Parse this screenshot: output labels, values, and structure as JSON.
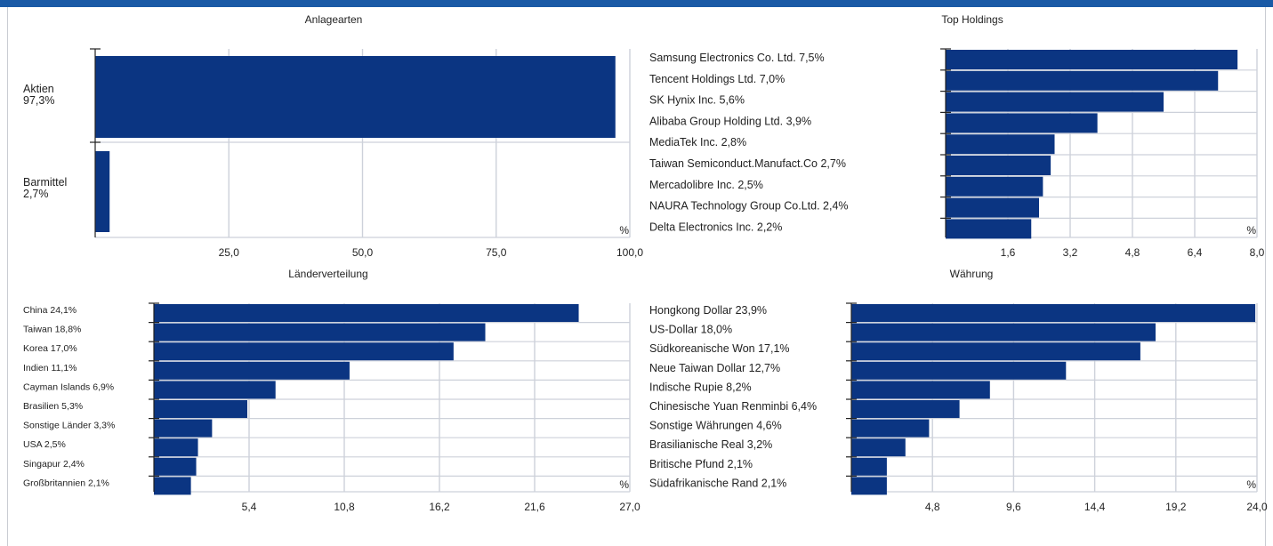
{
  "colors": {
    "bar": "#0b3582",
    "grid": "#cdd1da",
    "axis": "#222222",
    "topbar": "#1a5aa6"
  },
  "chart_data": [
    {
      "type": "bar",
      "orientation": "horizontal",
      "title": "Anlagearten",
      "unit_label": "%",
      "categories": [
        "Aktien",
        "Barmittel"
      ],
      "labels": [
        [
          "Aktien",
          "97,3%"
        ],
        [
          "Barmittel",
          "2,7%"
        ]
      ],
      "values": [
        97.3,
        2.7
      ],
      "xlim": [
        0,
        100
      ],
      "ticks": [
        "25,0",
        "50,0",
        "75,0",
        "100,0"
      ],
      "tick_values": [
        25,
        50,
        75,
        100
      ],
      "grid": true
    },
    {
      "type": "bar",
      "orientation": "horizontal",
      "title": "Top Holdings",
      "unit_label": "%",
      "categories": [
        "Samsung Electronics Co. Ltd.",
        "Tencent Holdings Ltd.",
        "SK Hynix Inc.",
        "Alibaba Group Holding Ltd.",
        "MediaTek Inc.",
        "Taiwan Semiconduct.Manufact.Co",
        "Mercadolibre Inc.",
        "NAURA Technology Group Co.Ltd.",
        "Delta Electronics Inc."
      ],
      "labels": [
        "Samsung Electronics Co. Ltd. 7,5%",
        "Tencent Holdings Ltd. 7,0%",
        "SK Hynix Inc. 5,6%",
        "Alibaba Group Holding Ltd. 3,9%",
        "MediaTek Inc. 2,8%",
        "Taiwan Semiconduct.Manufact.Co 2,7%",
        "Mercadolibre Inc. 2,5%",
        "NAURA Technology Group Co.Ltd. 2,4%",
        "Delta Electronics Inc. 2,2%"
      ],
      "values": [
        7.5,
        7.0,
        5.6,
        3.9,
        2.8,
        2.7,
        2.5,
        2.4,
        2.2
      ],
      "xlim": [
        0,
        8
      ],
      "ticks": [
        "1,6",
        "3,2",
        "4,8",
        "6,4",
        "8,0"
      ],
      "tick_values": [
        1.6,
        3.2,
        4.8,
        6.4,
        8.0
      ],
      "grid": true
    },
    {
      "type": "bar",
      "orientation": "horizontal",
      "title": "Länderverteilung",
      "unit_label": "%",
      "categories": [
        "China",
        "Taiwan",
        "Korea",
        "Indien",
        "Cayman Islands",
        "Brasilien",
        "Sonstige Länder",
        "USA",
        "Singapur",
        "Großbritannien"
      ],
      "labels": [
        "China 24,1%",
        "Taiwan 18,8%",
        "Korea 17,0%",
        "Indien 11,1%",
        "Cayman Islands 6,9%",
        "Brasilien 5,3%",
        "Sonstige Länder 3,3%",
        "USA 2,5%",
        "Singapur 2,4%",
        "Großbritannien 2,1%"
      ],
      "values": [
        24.1,
        18.8,
        17.0,
        11.1,
        6.9,
        5.3,
        3.3,
        2.5,
        2.4,
        2.1
      ],
      "xlim": [
        0,
        27
      ],
      "ticks": [
        "5,4",
        "10,8",
        "16,2",
        "21,6",
        "27,0"
      ],
      "tick_values": [
        5.4,
        10.8,
        16.2,
        21.6,
        27.0
      ],
      "grid": true
    },
    {
      "type": "bar",
      "orientation": "horizontal",
      "title": "Währung",
      "unit_label": "%",
      "categories": [
        "Hongkong Dollar",
        "US-Dollar",
        "Südkoreanische Won",
        "Neue Taiwan Dollar",
        "Indische Rupie",
        "Chinesische Yuan Renminbi",
        "Sonstige Währungen",
        "Brasilianische Real",
        "Britische Pfund",
        "Südafrikanische Rand"
      ],
      "labels": [
        "Hongkong Dollar 23,9%",
        "US-Dollar 18,0%",
        "Südkoreanische Won 17,1%",
        "Neue Taiwan Dollar 12,7%",
        "Indische Rupie 8,2%",
        "Chinesische Yuan Renminbi 6,4%",
        "Sonstige Währungen 4,6%",
        "Brasilianische Real 3,2%",
        "Britische Pfund 2,1%",
        "Südafrikanische Rand 2,1%"
      ],
      "values": [
        23.9,
        18.0,
        17.1,
        12.7,
        8.2,
        6.4,
        4.6,
        3.2,
        2.1,
        2.1
      ],
      "xlim": [
        0,
        24
      ],
      "ticks": [
        "4,8",
        "9,6",
        "14,4",
        "19,2",
        "24,0"
      ],
      "tick_values": [
        4.8,
        9.6,
        14.4,
        19.2,
        24.0
      ],
      "grid": true
    }
  ]
}
